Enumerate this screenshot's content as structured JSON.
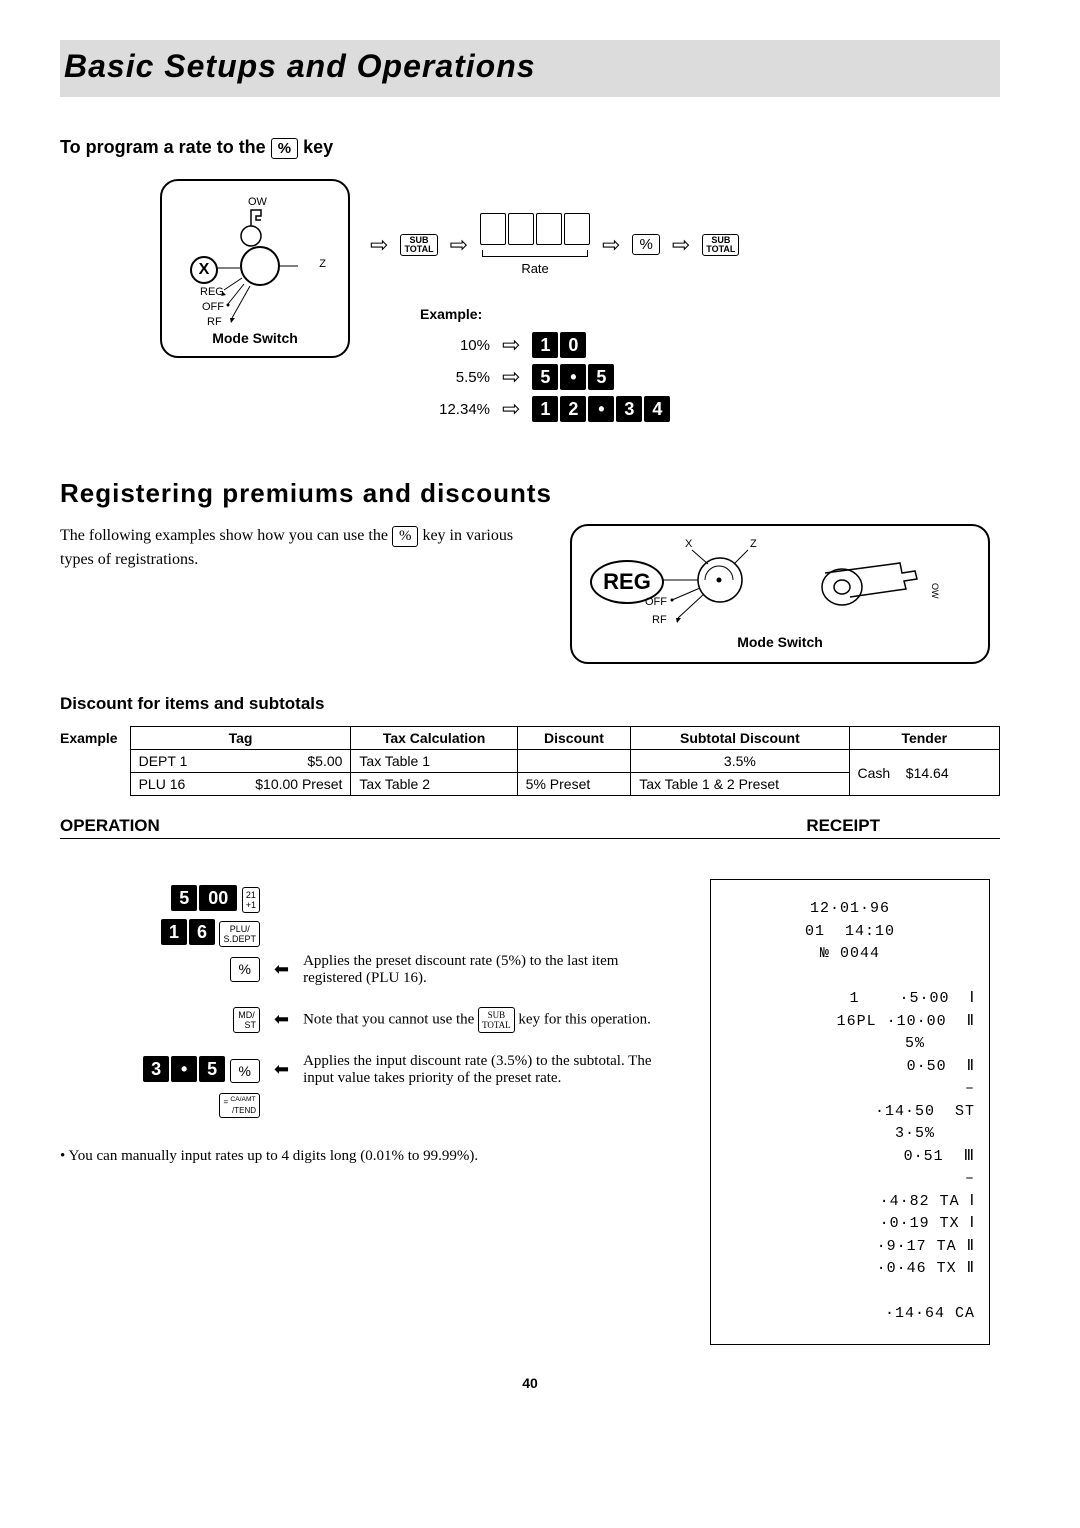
{
  "banner": {
    "title": "Basic Setups and Operations"
  },
  "program": {
    "heading_pre": "To program a rate to the ",
    "heading_key": "%",
    "heading_post": " key",
    "mode_switch_label": "Mode Switch",
    "dial_highlight": "X",
    "dial_reg": "REG",
    "dial_off": "OFF",
    "dial_rf": "RF",
    "dial_z": "Z",
    "dial_ow": "OW",
    "subtotal_key": "SUB\nTOTAL",
    "rate_label": "Rate",
    "percent_key": "%",
    "example_label": "Example:",
    "examples": [
      {
        "pct": "10%",
        "digits": [
          "1",
          "0"
        ]
      },
      {
        "pct": "5.5%",
        "digits": [
          "5",
          "•",
          "5"
        ]
      },
      {
        "pct": "12.34%",
        "digits": [
          "1",
          "2",
          "•",
          "3",
          "4"
        ]
      }
    ]
  },
  "registering": {
    "title": "Registering premiums and discounts",
    "body_pre": "The following examples show how you can use the ",
    "body_key": "%",
    "body_post": " key in various types of registrations.",
    "mode_switch_label": "Mode Switch",
    "reg_label": "REG",
    "dial_x": "X",
    "dial_z": "Z",
    "dial_off": "OFF",
    "dial_rf": "RF"
  },
  "discount": {
    "heading": "Discount for items and subtotals",
    "example_label": "Example",
    "table": {
      "headers": [
        "Tag",
        "Tax Calculation",
        "Discount",
        "Subtotal Discount",
        "Tender"
      ],
      "row1": {
        "tag_name": "DEPT 1",
        "tag_amt": "$5.00",
        "tax": "Tax Table 1",
        "disc": "",
        "sub": "3.5%",
        "tender_label": "Cash",
        "tender_amt": "$14.64"
      },
      "row2": {
        "tag_name": "PLU 16",
        "tag_amt": "$10.00 Preset",
        "tax": "Tax Table 2",
        "disc": "5% Preset",
        "sub": "Tax Table 1 & 2 Preset"
      }
    }
  },
  "op_rec": {
    "operation": "OPERATION",
    "receipt": "RECEIPT"
  },
  "operation": {
    "lines": [
      {
        "keys_blk": [
          "5",
          "00"
        ],
        "key_label": "21\n+1",
        "desc": ""
      },
      {
        "keys_blk": [
          "1",
          "6"
        ],
        "key_label": "PLU/\nS.DEPT",
        "desc": ""
      },
      {
        "keys_blk": [],
        "key_plain": "%",
        "desc": "Applies the preset discount rate (5%) to the last item registered (PLU 16)."
      },
      {
        "keys_blk": [],
        "key_label": "MD/\nST",
        "desc_pre": "Note that you cannot use the ",
        "desc_key": "SUB\nTOTAL",
        "desc_post": " key for this operation."
      },
      {
        "keys_blk": [
          "3",
          "•",
          "5"
        ],
        "key_plain": "%",
        "desc": "Applies the input discount rate (3.5%) to the subtotal. The input value takes priority of the preset rate."
      },
      {
        "keys_blk": [],
        "key_label": "=  CA/AMT\n    /TEND",
        "desc": ""
      }
    ],
    "note": "• You can manually input rates up to 4 digits long (0.01% to 99.99%)."
  },
  "receipt": {
    "lines": [
      "12·01·96",
      "01  14:10",
      "№ 0044",
      "",
      "1    ·5·00  Ⅰ",
      "16PL ·10·00  Ⅱ",
      "5%     ",
      "0·50  Ⅱ",
      "–",
      "·14·50  ST",
      "3·5%    ",
      "0·51  Ⅲ",
      "–",
      "·4·82 TA Ⅰ",
      "·0·19 TX Ⅰ",
      "·9·17 TA Ⅱ",
      "·0·46 TX Ⅱ",
      "",
      "·14·64 CA"
    ]
  },
  "page_number": "40"
}
